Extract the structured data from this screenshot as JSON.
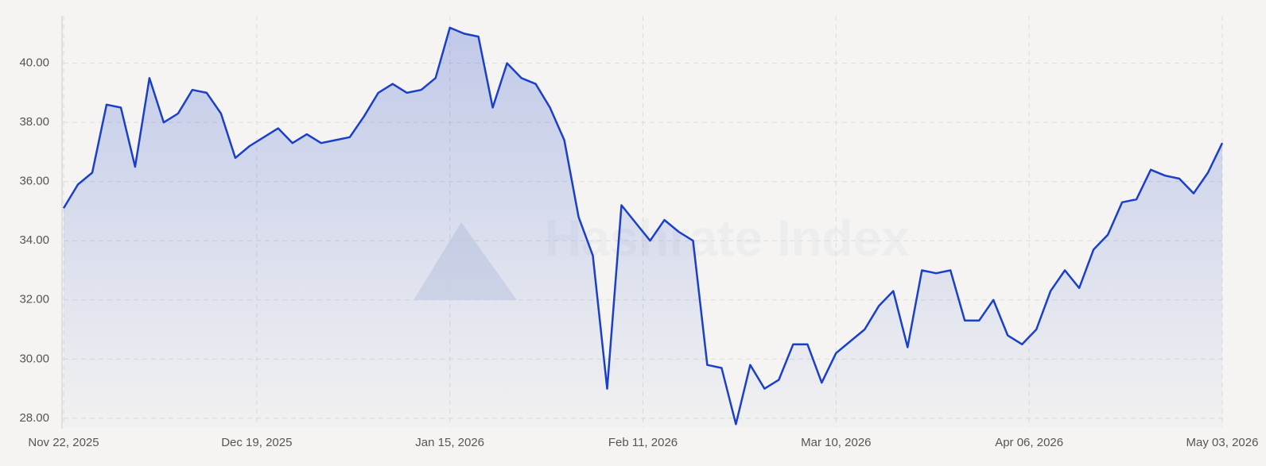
{
  "chart_data": {
    "type": "area",
    "watermark": "Hashrate Index",
    "x": [
      "2025-11-22",
      "2025-11-24",
      "2025-11-26",
      "2025-11-28",
      "2025-11-30",
      "2025-12-02",
      "2025-12-04",
      "2025-12-06",
      "2025-12-08",
      "2025-12-10",
      "2025-12-12",
      "2025-12-14",
      "2025-12-16",
      "2025-12-18",
      "2025-12-20",
      "2025-12-22",
      "2025-12-24",
      "2025-12-26",
      "2025-12-28",
      "2025-12-30",
      "2026-01-01",
      "2026-01-03",
      "2026-01-05",
      "2026-01-07",
      "2026-01-09",
      "2026-01-11",
      "2026-01-13",
      "2026-01-15",
      "2026-01-17",
      "2026-01-19",
      "2026-01-21",
      "2026-01-23",
      "2026-01-25",
      "2026-01-27",
      "2026-01-29",
      "2026-01-31",
      "2026-02-02",
      "2026-02-04",
      "2026-02-06",
      "2026-02-08",
      "2026-02-10",
      "2026-02-12",
      "2026-02-14",
      "2026-02-16",
      "2026-02-18",
      "2026-02-20",
      "2026-02-22",
      "2026-02-24",
      "2026-02-26",
      "2026-02-28",
      "2026-03-02",
      "2026-03-04",
      "2026-03-06",
      "2026-03-08",
      "2026-03-10",
      "2026-03-12",
      "2026-03-14",
      "2026-03-16",
      "2026-03-18",
      "2026-03-20",
      "2026-03-22",
      "2026-03-24",
      "2026-03-26",
      "2026-03-28",
      "2026-03-30",
      "2026-04-01",
      "2026-04-03",
      "2026-04-05",
      "2026-04-07",
      "2026-04-09",
      "2026-04-11",
      "2026-04-13",
      "2026-04-15",
      "2026-04-17",
      "2026-04-19",
      "2026-04-21",
      "2026-04-23",
      "2026-04-25",
      "2026-04-27",
      "2026-04-29",
      "2026-05-01",
      "2026-05-03"
    ],
    "series": [
      {
        "color": "#1a3fc8",
        "values": [
          35.1,
          35.9,
          36.3,
          38.6,
          38.5,
          36.5,
          39.5,
          38.0,
          38.3,
          39.1,
          39.0,
          38.3,
          36.8,
          37.2,
          37.5,
          37.8,
          37.3,
          37.6,
          37.3,
          37.4,
          37.5,
          38.2,
          39.0,
          39.3,
          39.0,
          39.1,
          39.5,
          41.2,
          41.0,
          40.9,
          38.5,
          40.0,
          39.5,
          39.3,
          38.5,
          37.4,
          34.8,
          33.5,
          29.0,
          35.2,
          34.6,
          34.0,
          34.7,
          34.3,
          34.0,
          29.8,
          29.7,
          27.8,
          29.8,
          29.0,
          29.3,
          30.5,
          30.5,
          29.2,
          30.2,
          30.6,
          31.0,
          31.8,
          32.3,
          30.4,
          33.0,
          32.9,
          33.0,
          31.3,
          31.3,
          32.0,
          30.8,
          30.5,
          31.0,
          32.3,
          33.0,
          32.4,
          33.7,
          34.2,
          35.3,
          35.4,
          36.4,
          36.2,
          36.1,
          35.6,
          36.3,
          37.3
        ]
      }
    ],
    "xlim": [
      "2025-11-22",
      "2026-05-03"
    ],
    "xticks": [
      {
        "value": "2025-11-22",
        "label": "Nov 22, 2025"
      },
      {
        "value": "2025-12-19",
        "label": "Dec 19, 2025"
      },
      {
        "value": "2026-01-15",
        "label": "Jan 15, 2026"
      },
      {
        "value": "2026-02-11",
        "label": "Feb 11, 2026"
      },
      {
        "value": "2026-03-10",
        "label": "Mar 10, 2026"
      },
      {
        "value": "2026-04-06",
        "label": "Apr 06, 2026"
      },
      {
        "value": "2026-05-03",
        "label": "May 03, 2026"
      }
    ],
    "ylim": [
      27.7,
      41.6
    ],
    "yticks": [
      {
        "value": 28,
        "label": "28.00"
      },
      {
        "value": 30,
        "label": "30.00"
      },
      {
        "value": 32,
        "label": "32.00"
      },
      {
        "value": 34,
        "label": "34.00"
      },
      {
        "value": 36,
        "label": "36.00"
      },
      {
        "value": 38,
        "label": "38.00"
      },
      {
        "value": 40,
        "label": "40.00"
      }
    ],
    "grid": true
  }
}
